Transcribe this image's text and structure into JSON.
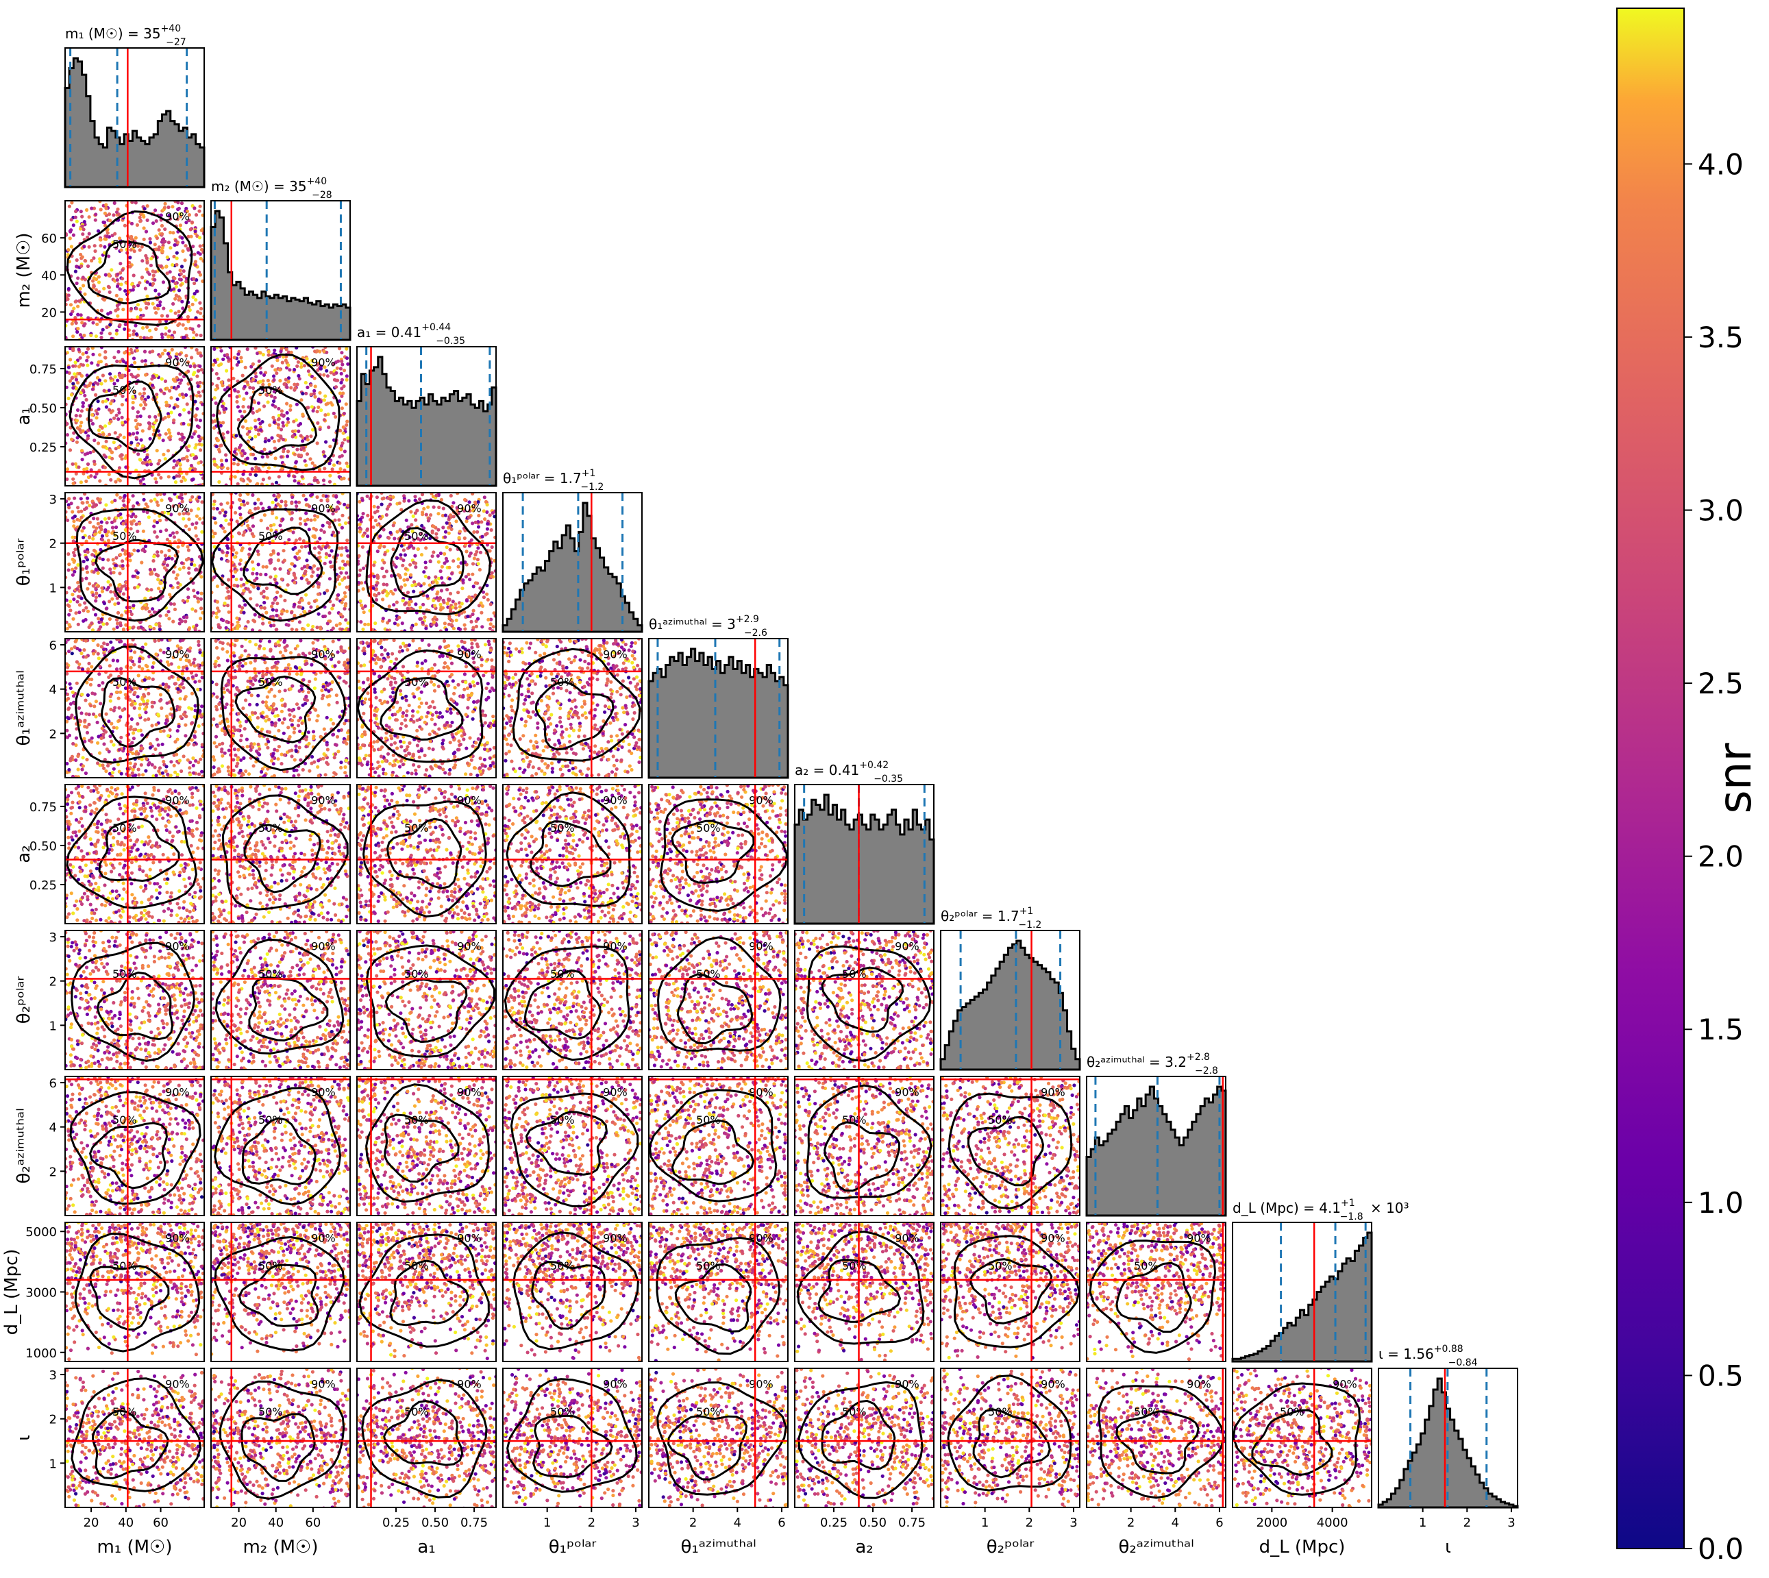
{
  "chart_data": {
    "type": "corner",
    "parameters": [
      {
        "key": "m1",
        "axis_label": "m₁ (M☉)",
        "tick_labels": [
          "20",
          "40",
          "60"
        ],
        "ticks": [
          20,
          40,
          60
        ],
        "range": [
          5,
          85
        ],
        "title": {
          "lhs": "m₁ (M☉) = ",
          "value": "35",
          "upper": "+40",
          "lower": "−27"
        },
        "median": 35,
        "lower90": 8,
        "upper90": 75,
        "injection": 41,
        "hist": [
          60,
          72,
          78,
          76,
          68,
          55,
          40,
          30,
          26,
          24,
          36,
          34,
          30,
          26,
          32,
          28,
          34,
          30,
          28,
          26,
          30,
          32,
          40,
          44,
          46,
          40,
          38,
          34,
          36,
          30,
          32,
          26,
          24
        ]
      },
      {
        "key": "m2",
        "axis_label": "m₂ (M☉)",
        "tick_labels": [
          "20",
          "40",
          "60"
        ],
        "ticks": [
          20,
          40,
          60
        ],
        "range": [
          5,
          80
        ],
        "title": {
          "lhs": "m₂ (M☉) = ",
          "value": "35",
          "upper": "+40",
          "lower": "−28"
        },
        "median": 35,
        "lower90": 7,
        "upper90": 75,
        "injection": 16,
        "hist": [
          70,
          80,
          76,
          60,
          42,
          34,
          36,
          32,
          28,
          30,
          28,
          26,
          30,
          27,
          26,
          28,
          26,
          27,
          24,
          26,
          25,
          24,
          26,
          23,
          22,
          24,
          21,
          22,
          20,
          22,
          21,
          22,
          20
        ]
      },
      {
        "key": "a1",
        "axis_label": "a₁",
        "tick_labels": [
          "0.25",
          "0.50",
          "0.75"
        ],
        "ticks": [
          0.25,
          0.5,
          0.75
        ],
        "range": [
          0.0,
          0.89
        ],
        "title": {
          "lhs": "a₁ = ",
          "value": "0.41",
          "upper": "+0.44",
          "lower": "−0.35"
        },
        "median": 0.41,
        "lower90": 0.06,
        "upper90": 0.85,
        "injection": 0.09,
        "hist": [
          50,
          66,
          60,
          68,
          70,
          76,
          66,
          58,
          56,
          50,
          52,
          48,
          50,
          46,
          50,
          52,
          48,
          54,
          50,
          48,
          52,
          50,
          54,
          56,
          50,
          52,
          54,
          48,
          46,
          50,
          44,
          48,
          58
        ]
      },
      {
        "key": "theta1polar",
        "axis_label": "θ₁ᵖᵒˡᵃʳ",
        "tick_labels": [
          "1",
          "2",
          "3"
        ],
        "ticks": [
          1,
          2,
          3
        ],
        "range": [
          0,
          3.14
        ],
        "title": {
          "lhs": "θ₁ᵖᵒˡᵃʳ = ",
          "value": "1.7",
          "upper": "+1",
          "lower": "−1.2"
        },
        "median": 1.7,
        "lower90": 0.45,
        "upper90": 2.7,
        "injection": 2.0,
        "hist": [
          4,
          8,
          14,
          20,
          26,
          30,
          32,
          36,
          40,
          38,
          44,
          50,
          56,
          52,
          60,
          66,
          58,
          50,
          62,
          80,
          72,
          58,
          52,
          46,
          40,
          36,
          34,
          30,
          22,
          18,
          12,
          8,
          4
        ]
      },
      {
        "key": "theta1az",
        "axis_label": "θ₁ᵃᶻⁱᵐᵘᵗʰᵃˡ",
        "tick_labels": [
          "2",
          "4",
          "6"
        ],
        "ticks": [
          2,
          4,
          6
        ],
        "range": [
          0,
          6.28
        ],
        "title": {
          "lhs": "θ₁ᵃᶻⁱᵐᵘᵗʰᵃˡ = ",
          "value": "3",
          "upper": "+2.9",
          "lower": "−2.6"
        },
        "median": 3.0,
        "lower90": 0.4,
        "upper90": 5.9,
        "injection": 4.8,
        "hist": [
          48,
          52,
          54,
          50,
          56,
          60,
          58,
          62,
          56,
          60,
          64,
          58,
          62,
          56,
          60,
          54,
          58,
          52,
          56,
          60,
          54,
          58,
          52,
          56,
          50,
          54,
          52,
          50,
          56,
          52,
          48,
          50,
          46
        ]
      },
      {
        "key": "a2",
        "axis_label": "a₂",
        "tick_labels": [
          "0.25",
          "0.50",
          "0.75"
        ],
        "ticks": [
          0.25,
          0.5,
          0.75
        ],
        "range": [
          0.0,
          0.89
        ],
        "title": {
          "lhs": "a₂ = ",
          "value": "0.41",
          "upper": "+0.42",
          "lower": "−0.35"
        },
        "median": 0.41,
        "lower90": 0.06,
        "upper90": 0.83,
        "injection": 0.41,
        "hist": [
          40,
          46,
          42,
          44,
          50,
          48,
          46,
          52,
          44,
          48,
          42,
          46,
          40,
          38,
          42,
          44,
          40,
          38,
          44,
          42,
          38,
          40,
          44,
          46,
          40,
          36,
          42,
          38,
          46,
          40,
          38,
          42,
          34
        ]
      },
      {
        "key": "theta2polar",
        "axis_label": "θ₂ᵖᵒˡᵃʳ",
        "tick_labels": [
          "1",
          "2",
          "3"
        ],
        "ticks": [
          1,
          2,
          3
        ],
        "range": [
          0,
          3.14
        ],
        "title": {
          "lhs": "θ₂ᵖᵒˡᵃʳ = ",
          "value": "1.7",
          "upper": "+1",
          "lower": "−1.2"
        },
        "median": 1.7,
        "lower90": 0.45,
        "upper90": 2.7,
        "injection": 2.05,
        "hist": [
          6,
          14,
          22,
          28,
          34,
          36,
          38,
          40,
          42,
          44,
          46,
          50,
          54,
          58,
          62,
          66,
          70,
          72,
          74,
          70,
          66,
          64,
          62,
          60,
          58,
          56,
          52,
          50,
          44,
          34,
          22,
          12,
          6
        ]
      },
      {
        "key": "theta2az",
        "axis_label": "θ₂ᵃᶻⁱᵐᵘᵗʰᵃˡ",
        "tick_labels": [
          "2",
          "4",
          "6"
        ],
        "ticks": [
          2,
          4,
          6
        ],
        "range": [
          0,
          6.28
        ],
        "title": {
          "lhs": "θ₂ᵃᶻⁱᵐᵘᵗʰᵃˡ = ",
          "value": "3.2",
          "upper": "+2.8",
          "lower": "−2.8"
        },
        "median": 3.2,
        "lower90": 0.4,
        "upper90": 6.0,
        "injection": 6.15,
        "hist": [
          30,
          34,
          40,
          36,
          38,
          42,
          44,
          48,
          52,
          56,
          50,
          54,
          60,
          56,
          62,
          66,
          60,
          56,
          52,
          48,
          44,
          40,
          36,
          40,
          44,
          48,
          52,
          56,
          60,
          58,
          62,
          66,
          64
        ]
      },
      {
        "key": "dL",
        "axis_label": "d_L (Mpc)",
        "tick_labels": [
          "2000",
          "4000"
        ],
        "ticks": [
          2000,
          4000
        ],
        "y_tick_labels": [
          "1000",
          "3000",
          "5000"
        ],
        "y_ticks": [
          1000,
          3000,
          5000
        ],
        "range": [
          700,
          5300
        ],
        "title": {
          "lhs": "d_L (Mpc) = ",
          "value": "4.1",
          "upper": "+1",
          "lower": "−1.8",
          "suffix": " × 10³"
        },
        "median": 4100,
        "lower90": 2300,
        "upper90": 5100,
        "injection": 3400,
        "hist": [
          2,
          2,
          3,
          4,
          5,
          6,
          8,
          10,
          12,
          16,
          20,
          22,
          26,
          30,
          28,
          34,
          40,
          36,
          44,
          48,
          54,
          58,
          62,
          66,
          64,
          70,
          76,
          80,
          78,
          86,
          90,
          96,
          100
        ]
      },
      {
        "key": "iota",
        "axis_label": "ι",
        "tick_labels": [
          "1",
          "2",
          "3"
        ],
        "ticks": [
          1,
          2,
          3
        ],
        "range": [
          0,
          3.14
        ],
        "title": {
          "lhs": "ι = ",
          "value": "1.56",
          "upper": "+0.88",
          "lower": "−0.84"
        },
        "median": 1.56,
        "lower90": 0.72,
        "upper90": 2.44,
        "injection": 1.5,
        "hist": [
          2,
          4,
          6,
          10,
          14,
          20,
          28,
          34,
          40,
          46,
          54,
          64,
          74,
          86,
          94,
          84,
          72,
          64,
          56,
          50,
          42,
          36,
          30,
          24,
          18,
          14,
          10,
          8,
          6,
          4,
          3,
          2,
          1
        ]
      }
    ],
    "contour_labels": [
      "50%",
      "90%"
    ],
    "colorbar": {
      "label": "snr",
      "min": 0.0,
      "max": 4.45,
      "ticks": [
        0.0,
        0.5,
        1.0,
        1.5,
        2.0,
        2.5,
        3.0,
        3.5,
        4.0
      ],
      "tick_labels": [
        "0.0",
        "0.5",
        "1.0",
        "1.5",
        "2.0",
        "2.5",
        "3.0",
        "3.5",
        "4.0"
      ],
      "colormap": "plasma"
    },
    "colors": {
      "histogram_fill": "#808080",
      "histogram_edge": "#000000",
      "quantile_line": "#1f77b4",
      "injection_line": "#ff0000",
      "contour": "#000000"
    }
  }
}
